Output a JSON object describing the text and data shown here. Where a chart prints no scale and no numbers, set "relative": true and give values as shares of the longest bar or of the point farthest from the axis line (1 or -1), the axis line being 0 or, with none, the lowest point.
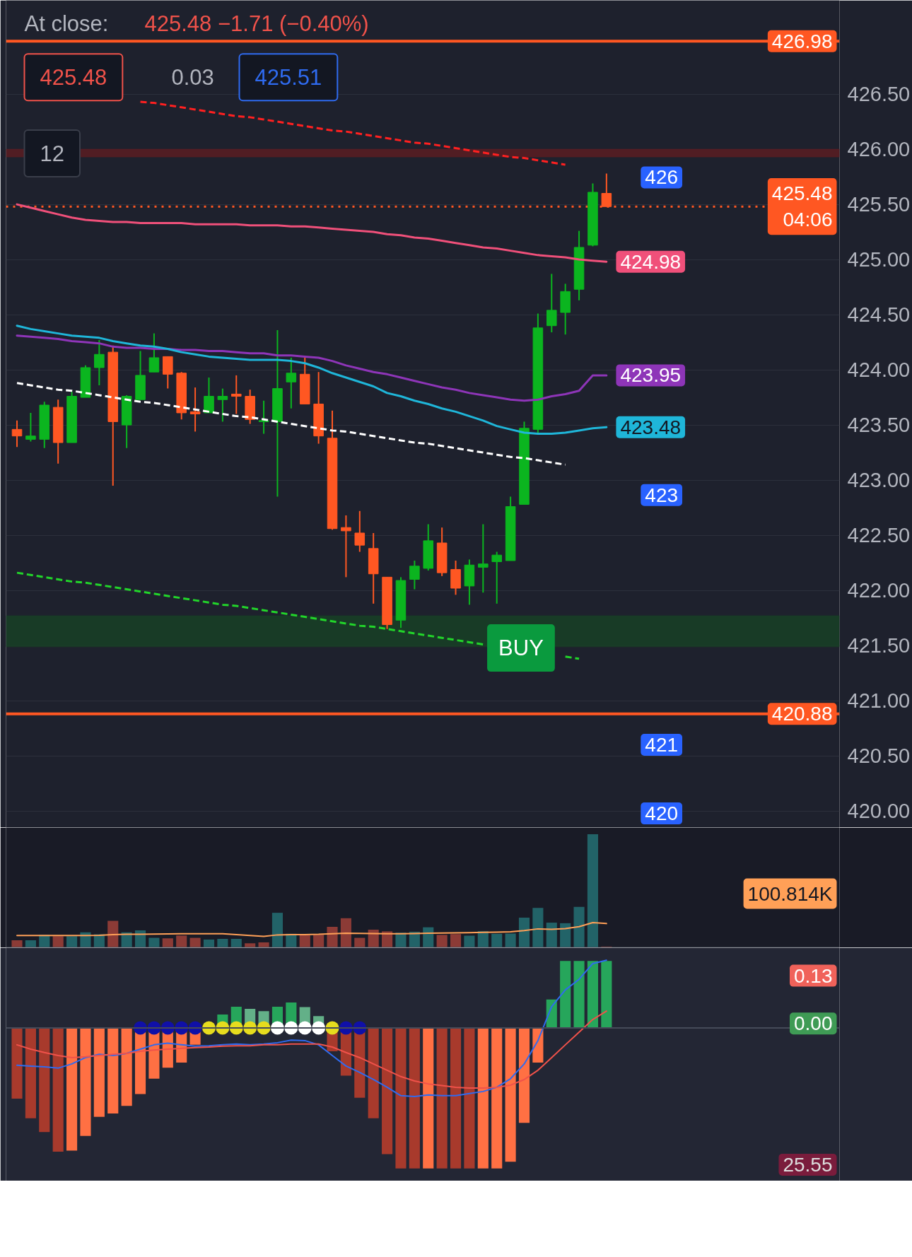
{
  "chart_data": [
    {
      "type": "candlestick",
      "categories": [
        null,
        null,
        null,
        null,
        null,
        null,
        null,
        null,
        null,
        null,
        null,
        null,
        null,
        null,
        null,
        null,
        null,
        null,
        null,
        null,
        null,
        null,
        null,
        null,
        null,
        null,
        null,
        null,
        null,
        null,
        null,
        null,
        null,
        null,
        null,
        null,
        null,
        null,
        null,
        null,
        null,
        null,
        null,
        null
      ],
      "ohlc": [
        [
          423.46,
          423.54,
          423.3,
          423.4
        ],
        [
          423.37,
          423.61,
          423.35,
          423.4
        ],
        [
          423.37,
          423.71,
          423.29,
          423.68
        ],
        [
          423.66,
          423.73,
          423.15,
          423.34
        ],
        [
          423.34,
          423.8,
          423.34,
          423.76
        ],
        [
          423.75,
          424.04,
          423.75,
          424.02
        ],
        [
          424.02,
          424.27,
          423.86,
          424.14
        ],
        [
          424.16,
          424.22,
          422.95,
          423.53
        ],
        [
          423.5,
          423.77,
          423.29,
          423.76
        ],
        [
          423.73,
          424.17,
          423.73,
          423.95
        ],
        [
          423.98,
          424.33,
          423.98,
          424.11
        ],
        [
          424.12,
          424.12,
          423.83,
          423.96
        ],
        [
          423.97,
          423.98,
          423.55,
          423.61
        ],
        [
          423.62,
          423.84,
          423.44,
          423.6
        ],
        [
          423.61,
          423.93,
          423.61,
          423.76
        ],
        [
          423.73,
          423.83,
          423.53,
          423.76
        ],
        [
          423.78,
          423.95,
          423.6,
          423.76
        ],
        [
          423.76,
          423.82,
          423.51,
          423.55
        ],
        [
          423.53,
          423.72,
          423.42,
          423.54
        ],
        [
          423.53,
          424.36,
          422.85,
          423.83
        ],
        [
          423.89,
          424.11,
          423.65,
          423.97
        ],
        [
          423.96,
          424.11,
          423.69,
          423.69
        ],
        [
          423.69,
          423.98,
          423.33,
          423.4
        ],
        [
          423.38,
          423.63,
          422.55,
          422.56
        ],
        [
          422.57,
          422.68,
          422.12,
          422.54
        ],
        [
          422.52,
          422.72,
          422.35,
          422.41
        ],
        [
          422.38,
          422.52,
          421.88,
          422.15
        ],
        [
          422.12,
          422.12,
          421.65,
          421.69
        ],
        [
          421.73,
          422.12,
          421.66,
          422.09
        ],
        [
          422.1,
          422.27,
          422.01,
          422.22
        ],
        [
          422.2,
          422.6,
          422.18,
          422.45
        ],
        [
          422.43,
          422.57,
          422.13,
          422.16
        ],
        [
          422.19,
          422.27,
          421.96,
          422.02
        ],
        [
          422.04,
          422.28,
          421.87,
          422.23
        ],
        [
          422.21,
          422.6,
          421.98,
          422.24
        ],
        [
          422.26,
          422.35,
          421.88,
          422.32
        ],
        [
          422.27,
          422.85,
          422.27,
          422.76
        ],
        [
          422.78,
          423.53,
          422.78,
          423.47
        ],
        [
          423.46,
          424.51,
          423.43,
          424.38
        ],
        [
          424.4,
          424.87,
          424.34,
          424.54
        ],
        [
          424.52,
          424.78,
          424.32,
          424.71
        ],
        [
          424.73,
          425.26,
          424.63,
          425.11
        ],
        [
          425.13,
          425.69,
          425.12,
          425.61
        ],
        [
          425.6,
          425.78,
          425.48,
          425.48
        ]
      ],
      "ylim": [
        419.85,
        427.35
      ],
      "yticks": [
        {
          "value": 420,
          "label": "420.00"
        },
        {
          "value": 420.5,
          "label": "420.50"
        },
        {
          "value": 421,
          "label": "421.00"
        },
        {
          "value": 421.5,
          "label": "421.50"
        },
        {
          "value": 422,
          "label": "422.00"
        },
        {
          "value": 422.5,
          "label": "422.50"
        },
        {
          "value": 423,
          "label": "423.00"
        },
        {
          "value": 423.5,
          "label": "423.50"
        },
        {
          "value": 424,
          "label": "424.00"
        },
        {
          "value": 424.5,
          "label": "424.50"
        },
        {
          "value": 425,
          "label": "425.00"
        },
        {
          "value": 425.5,
          "label": "425.50"
        },
        {
          "value": 426,
          "label": "426.00"
        },
        {
          "value": 426.5,
          "label": "426.50"
        }
      ],
      "grid": "y",
      "tick_labels": "y",
      "series": [
        {
          "type": "line",
          "color": "#f0507a",
          "values": [
            425.5,
            425.47,
            425.44,
            425.41,
            425.38,
            425.36,
            425.35,
            425.34,
            425.34,
            425.33,
            425.33,
            425.33,
            425.33,
            425.32,
            425.32,
            425.32,
            425.32,
            425.31,
            425.31,
            425.31,
            425.3,
            425.3,
            425.29,
            425.28,
            425.27,
            425.26,
            425.25,
            425.23,
            425.22,
            425.2,
            425.19,
            425.17,
            425.15,
            425.13,
            425.11,
            425.1,
            425.08,
            425.06,
            425.04,
            425.03,
            425.02,
            425.0,
            424.99,
            424.98
          ],
          "value_labels": [
            null,
            null,
            null,
            null,
            null,
            null,
            null,
            null,
            null,
            null,
            null,
            null,
            null,
            null,
            null,
            null,
            null,
            null,
            null,
            null,
            null,
            null,
            null,
            null,
            null,
            null,
            null,
            null,
            null,
            null,
            null,
            null,
            null,
            null,
            null,
            null,
            null,
            null,
            null,
            null,
            null,
            null,
            null,
            "424.98"
          ]
        },
        {
          "type": "line",
          "color": "#8e35b8",
          "values": [
            424.31,
            424.3,
            424.29,
            424.28,
            424.26,
            424.25,
            424.24,
            424.21,
            424.2,
            424.2,
            424.19,
            424.19,
            424.18,
            424.18,
            424.17,
            424.17,
            424.16,
            424.15,
            424.15,
            424.13,
            424.13,
            424.12,
            424.11,
            424.08,
            424.04,
            424.01,
            423.98,
            423.96,
            423.93,
            423.9,
            423.87,
            423.84,
            423.82,
            423.79,
            423.77,
            423.75,
            423.73,
            423.72,
            423.73,
            423.76,
            423.78,
            423.81,
            423.95,
            423.95
          ],
          "value_labels": [
            null,
            null,
            null,
            null,
            null,
            null,
            null,
            null,
            null,
            null,
            null,
            null,
            null,
            null,
            null,
            null,
            null,
            null,
            null,
            null,
            null,
            null,
            null,
            null,
            null,
            null,
            null,
            null,
            null,
            null,
            null,
            null,
            null,
            null,
            null,
            null,
            null,
            null,
            null,
            null,
            null,
            null,
            null,
            "423.95"
          ]
        },
        {
          "type": "line",
          "color": "#1fb6d9",
          "values": [
            424.4,
            424.37,
            424.35,
            424.33,
            424.31,
            424.3,
            424.29,
            424.26,
            424.24,
            424.22,
            424.21,
            424.19,
            424.16,
            424.14,
            424.12,
            424.11,
            424.1,
            424.09,
            424.09,
            424.09,
            424.08,
            424.06,
            424.02,
            423.97,
            423.93,
            423.89,
            423.85,
            423.79,
            423.76,
            423.72,
            423.69,
            423.65,
            423.62,
            423.58,
            423.54,
            423.49,
            423.46,
            423.43,
            423.42,
            423.42,
            423.43,
            423.45,
            423.47,
            423.48
          ],
          "value_labels": [
            null,
            null,
            null,
            null,
            null,
            null,
            null,
            null,
            null,
            null,
            null,
            null,
            null,
            null,
            null,
            null,
            null,
            null,
            null,
            null,
            null,
            null,
            null,
            null,
            null,
            null,
            null,
            null,
            null,
            null,
            null,
            null,
            null,
            null,
            null,
            null,
            null,
            null,
            null,
            null,
            null,
            null,
            null,
            "423.48"
          ]
        },
        {
          "type": "line",
          "color": "#ff2020",
          "line_style": "dashed",
          "values": [
            null,
            null,
            null,
            null,
            null,
            null,
            null,
            null,
            null,
            426.43,
            426.42,
            426.4,
            426.38,
            426.36,
            426.34,
            426.32,
            426.3,
            426.29,
            426.27,
            426.25,
            426.23,
            426.21,
            426.19,
            426.17,
            426.16,
            426.14,
            426.12,
            426.1,
            426.08,
            426.06,
            426.05,
            426.03,
            426.01,
            425.99,
            425.97,
            425.95,
            425.93,
            425.92,
            425.9,
            425.88,
            425.86,
            null,
            null,
            null
          ]
        },
        {
          "type": "line",
          "color": "#ffffff",
          "line_style": "dashed",
          "values": [
            423.88,
            423.86,
            423.84,
            423.82,
            423.81,
            423.79,
            423.77,
            423.75,
            423.73,
            423.71,
            423.7,
            423.68,
            423.66,
            423.64,
            423.62,
            423.6,
            423.58,
            423.57,
            423.55,
            423.53,
            423.51,
            423.49,
            423.47,
            423.45,
            423.44,
            423.42,
            423.4,
            423.38,
            423.36,
            423.34,
            423.33,
            423.31,
            423.29,
            423.27,
            423.25,
            423.23,
            423.21,
            423.2,
            423.18,
            423.16,
            423.14,
            null,
            null,
            null
          ]
        },
        {
          "type": "line",
          "color": "#22d52a",
          "line_style": "dashed",
          "values": [
            422.16,
            422.14,
            422.12,
            422.1,
            422.08,
            422.07,
            422.05,
            422.03,
            422.01,
            421.99,
            421.97,
            421.95,
            421.93,
            421.91,
            421.89,
            421.87,
            421.86,
            421.84,
            421.82,
            421.8,
            421.78,
            421.76,
            421.74,
            421.72,
            421.7,
            421.68,
            421.67,
            421.65,
            421.63,
            421.61,
            421.59,
            421.57,
            421.55,
            421.53,
            421.51,
            null,
            null,
            null,
            null,
            null,
            421.4,
            421.38,
            null,
            null
          ]
        }
      ],
      "ref_lines": [
        {
          "axis": "y",
          "value": 426.98,
          "label": "426.98",
          "color": "#ff5722",
          "line_style": "solid"
        },
        {
          "axis": "y",
          "value": 425.48,
          "label": "425.48\n04:06",
          "color": "#ff5722",
          "line_style": "dotted"
        },
        {
          "axis": "y",
          "value": 420.88,
          "label": "420.88",
          "color": "#ff5722",
          "line_style": "solid"
        }
      ],
      "bands": [
        {
          "axis": "y",
          "from": 425.93,
          "to": 426.0,
          "color": "#5a1c22"
        },
        {
          "axis": "y",
          "from": 421.49,
          "to": 421.77,
          "color": "#173f26"
        }
      ],
      "annotations": [
        "At close:",
        "425.48 −1.71 (−0.40%)",
        "425.48",
        "0.03",
        "425.51",
        "12",
        "BUY",
        "426",
        "423",
        "421",
        "420"
      ]
    },
    {
      "type": "bar",
      "relative": true,
      "categories": [
        null,
        null,
        null,
        null,
        null,
        null,
        null,
        null,
        null,
        null,
        null,
        null,
        null,
        null,
        null,
        null,
        null,
        null,
        null,
        null,
        null,
        null,
        null,
        null,
        null,
        null,
        null,
        null,
        null,
        null,
        null,
        null,
        null,
        null,
        null,
        null,
        null,
        null,
        null,
        null,
        null,
        null,
        null,
        null
      ],
      "series": [
        {
          "type": "bar",
          "values": [
            0.065,
            0.065,
            0.114,
            0.101,
            0.101,
            0.136,
            0.118,
            0.237,
            0.136,
            0.153,
            0.087,
            0.082,
            0.107,
            0.087,
            0.072,
            0.078,
            0.078,
            0.039,
            0.047,
            0.308,
            0.123,
            0.11,
            0.114,
            0.184,
            0.26,
            0.087,
            0.159,
            0.144,
            0.133,
            0.141,
            0.18,
            0.113,
            0.12,
            0.106,
            0.146,
            0.123,
            0.125,
            0.265,
            0.351,
            0.221,
            0.216,
            0.36,
            1,
            0.01
          ],
          "colors": [
            "#8c3b36",
            "#226368",
            "#226368",
            "#8c3b36",
            "#226368",
            "#226368",
            "#226368",
            "#8c3b36",
            "#226368",
            "#226368",
            "#226368",
            "#8c3b36",
            "#8c3b36",
            "#8c3b36",
            "#226368",
            "#226368",
            "#226368",
            "#8c3b36",
            "#8c3b36",
            "#226368",
            "#226368",
            "#8c3b36",
            "#8c3b36",
            "#8c3b36",
            "#8c3b36",
            "#8c3b36",
            "#8c3b36",
            "#8c3b36",
            "#226368",
            "#226368",
            "#226368",
            "#8c3b36",
            "#8c3b36",
            "#226368",
            "#226368",
            "#226368",
            "#226368",
            "#226368",
            "#226368",
            "#226368",
            "#226368",
            "#226368",
            "#226368",
            "#8c3b36"
          ]
        },
        {
          "type": "line",
          "color": "#ffa057",
          "values": [
            0.107,
            0.107,
            0.107,
            0.107,
            0.107,
            0.108,
            0.109,
            0.116,
            0.118,
            0.119,
            0.12,
            0.122,
            0.123,
            0.123,
            0.123,
            0.123,
            0.116,
            0.107,
            0.1,
            0.113,
            0.115,
            0.116,
            0.118,
            0.123,
            0.128,
            0.127,
            0.125,
            0.123,
            0.123,
            0.125,
            0.128,
            0.129,
            0.131,
            0.132,
            0.135,
            0.137,
            0.14,
            0.151,
            0.166,
            0.162,
            0.168,
            0.185,
            0.221,
            0.213
          ]
        }
      ],
      "annotations": [
        "100.814K"
      ]
    },
    {
      "type": "bar",
      "relative": true,
      "categories": [
        null,
        null,
        null,
        null,
        null,
        null,
        null,
        null,
        null,
        null,
        null,
        null,
        null,
        null,
        null,
        null,
        null,
        null,
        null,
        null,
        null,
        null,
        null,
        null,
        null,
        null,
        null,
        null,
        null,
        null,
        null,
        null,
        null,
        null,
        null,
        null,
        null,
        null,
        null,
        null,
        null,
        null,
        null,
        null
      ],
      "series": [
        {
          "type": "bar",
          "values": [
            -0.503,
            -0.642,
            -0.741,
            -0.88,
            -0.873,
            -0.768,
            -0.633,
            -0.608,
            -0.554,
            -0.47,
            -0.361,
            -0.283,
            -0.247,
            -0.12,
            null,
            0.096,
            0.151,
            0.136,
            0.12,
            0.151,
            0.181,
            0.148,
            0.084,
            -0.166,
            -0.34,
            -0.497,
            -0.642,
            -0.898,
            -1,
            -1,
            -1,
            -1,
            -1,
            -1,
            -1,
            -1,
            -0.952,
            -0.675,
            -0.247,
            0.202,
            0.476,
            0.476,
            0.476,
            0.476
          ],
          "colors": [
            "#a83a2c",
            "#a83a2c",
            "#a83a2c",
            "#a83a2c",
            "#ff7043",
            "#ff7043",
            "#ff7043",
            "#ff7043",
            "#ff7043",
            "#ff7043",
            "#ff7043",
            "#ff7043",
            "#ff7043",
            "#ff7043",
            "#a83a2c",
            "#26a65b",
            "#26a65b",
            "#63b088",
            "#63b088",
            "#26a65b",
            "#26a65b",
            "#63b088",
            "#63b088",
            "#a83a2c",
            "#a83a2c",
            "#a83a2c",
            "#a83a2c",
            "#a83a2c",
            "#a83a2c",
            "#a83a2c",
            "#ff7043",
            "#a83a2c",
            "#a83a2c",
            "#a83a2c",
            "#ff7043",
            "#ff7043",
            "#ff7043",
            "#ff7043",
            "#ff7043",
            "#26a65b",
            "#26a65b",
            "#26a65b",
            "#26a65b",
            "#26a65b"
          ]
        },
        {
          "type": "line",
          "color": "#2f6bf0",
          "values": [
            -0.265,
            -0.271,
            -0.277,
            -0.286,
            -0.256,
            -0.211,
            -0.187,
            -0.196,
            -0.181,
            -0.151,
            -0.12,
            -0.108,
            -0.12,
            -0.13,
            -0.127,
            -0.12,
            -0.114,
            -0.12,
            -0.114,
            -0.105,
            -0.087,
            -0.09,
            -0.12,
            -0.196,
            -0.271,
            -0.316,
            -0.367,
            -0.422,
            -0.482,
            -0.488,
            -0.476,
            -0.482,
            -0.482,
            -0.467,
            -0.452,
            -0.422,
            -0.361,
            -0.256,
            -0.09,
            0.151,
            0.271,
            0.346,
            0.458,
            0.482
          ]
        },
        {
          "type": "line",
          "color": "#f0524a",
          "values": [
            -0.12,
            -0.151,
            -0.175,
            -0.196,
            -0.211,
            -0.205,
            -0.196,
            -0.187,
            -0.181,
            -0.166,
            -0.157,
            -0.151,
            -0.145,
            -0.139,
            -0.136,
            -0.13,
            -0.127,
            -0.127,
            -0.12,
            -0.12,
            -0.114,
            -0.114,
            -0.114,
            -0.136,
            -0.175,
            -0.211,
            -0.256,
            -0.301,
            -0.346,
            -0.377,
            -0.398,
            -0.41,
            -0.422,
            -0.428,
            -0.428,
            -0.422,
            -0.407,
            -0.367,
            -0.301,
            -0.211,
            -0.12,
            -0.03,
            0.06,
            0.12
          ]
        },
        {
          "type": "scatter",
          "values": [
            null,
            null,
            null,
            null,
            null,
            null,
            null,
            null,
            null,
            0,
            0,
            0,
            0,
            0,
            0,
            0,
            0,
            0,
            0,
            0,
            0,
            0,
            0,
            0,
            0,
            0,
            null,
            null,
            null,
            null,
            null,
            null,
            null,
            null,
            null,
            null,
            null,
            null,
            null,
            null,
            null,
            null,
            null,
            null
          ],
          "colors": [
            null,
            null,
            null,
            null,
            null,
            null,
            null,
            null,
            null,
            "#1010a8",
            "#1010a8",
            "#1010a8",
            "#1010a8",
            "#1010a8",
            "#e6dc1e",
            "#e6dc1e",
            "#e6dc1e",
            "#e6dc1e",
            "#e6dc1e",
            "#ffffff",
            "#ffffff",
            "#ffffff",
            "#ffffff",
            "#e6dc1e",
            "#1010a8",
            "#1010a8",
            null,
            null,
            null,
            null,
            null,
            null,
            null,
            null,
            null,
            null,
            null,
            null,
            null,
            null,
            null,
            null,
            null,
            null
          ]
        }
      ],
      "annotations": [
        "0.13",
        "0.00",
        "25.55"
      ]
    }
  ]
}
